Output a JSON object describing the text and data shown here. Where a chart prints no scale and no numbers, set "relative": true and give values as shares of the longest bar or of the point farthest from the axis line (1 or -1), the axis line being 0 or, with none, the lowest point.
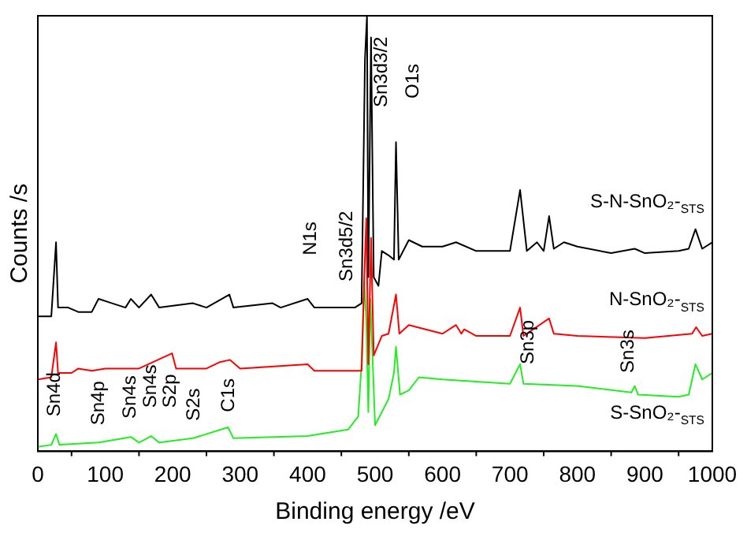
{
  "chart_data": {
    "type": "line",
    "relative": true,
    "xlabel": "Binding energy /eV",
    "ylabel": "Counts /s",
    "xlim": [
      0,
      1000
    ],
    "xticks": [
      0,
      100,
      200,
      300,
      400,
      500,
      600,
      700,
      800,
      900,
      1000
    ],
    "tick_labels": "x",
    "grid": false,
    "legend": false,
    "marker": "none",
    "series": [
      {
        "name": "S-N-SnO₂-$_{STS}$",
        "color": "#000000",
        "x": [
          0,
          10,
          20,
          27,
          30,
          45,
          60,
          80,
          90,
          110,
          130,
          138,
          150,
          168,
          180,
          230,
          250,
          284,
          290,
          348,
          360,
          400,
          410,
          470,
          480,
          485,
          488,
          490,
          494,
          498,
          505,
          510,
          520,
          528,
          531,
          535,
          550,
          570,
          600,
          620,
          650,
          700,
          715,
          725,
          740,
          750,
          758,
          765,
          780,
          800,
          850,
          885,
          900,
          950,
          965,
          975,
          985,
          1000
        ],
        "values": [
          0.31,
          0.31,
          0.31,
          0.48,
          0.33,
          0.33,
          0.32,
          0.32,
          0.35,
          0.34,
          0.33,
          0.35,
          0.33,
          0.36,
          0.33,
          0.34,
          0.33,
          0.36,
          0.33,
          0.34,
          0.33,
          0.35,
          0.33,
          0.33,
          0.34,
          0.9,
          1,
          0.4,
          0.95,
          0.4,
          0.38,
          0.46,
          0.45,
          0.44,
          0.71,
          0.44,
          0.485,
          0.47,
          0.47,
          0.48,
          0.46,
          0.46,
          0.6,
          0.46,
          0.48,
          0.46,
          0.54,
          0.465,
          0.48,
          0.47,
          0.455,
          0.465,
          0.455,
          0.46,
          0.465,
          0.51,
          0.465,
          0.48
        ]
      },
      {
        "name": "N-SnO₂-$_{STS}$",
        "color": "#ff0000",
        "x": [
          0,
          20,
          27,
          30,
          50,
          60,
          80,
          100,
          150,
          199,
          205,
          250,
          270,
          285,
          300,
          400,
          410,
          480,
          484,
          487,
          490,
          494,
          498,
          510,
          520,
          531,
          536,
          550,
          600,
          620,
          628,
          632,
          650,
          700,
          715,
          720,
          758,
          765,
          800,
          900,
          970,
          976,
          985,
          1000
        ],
        "values": [
          0.165,
          0.17,
          0.25,
          0.18,
          0.18,
          0.19,
          0.185,
          0.19,
          0.19,
          0.225,
          0.19,
          0.19,
          0.205,
          0.21,
          0.19,
          0.2,
          0.185,
          0.185,
          0.4,
          0.535,
          0.2,
          0.49,
          0.22,
          0.265,
          0.27,
          0.36,
          0.27,
          0.29,
          0.27,
          0.29,
          0.27,
          0.28,
          0.265,
          0.265,
          0.33,
          0.265,
          0.305,
          0.27,
          0.265,
          0.26,
          0.27,
          0.285,
          0.265,
          0.27
        ]
      },
      {
        "name": "S-SnO₂-$_{STS}$",
        "color": "#22ee22",
        "x": [
          0,
          20,
          27,
          32,
          90,
          138,
          150,
          168,
          180,
          230,
          282,
          290,
          400,
          460,
          475,
          480,
          484,
          487,
          490,
          493,
          500,
          520,
          528,
          531,
          537,
          550,
          565,
          600,
          650,
          700,
          715,
          720,
          800,
          880,
          885,
          890,
          950,
          965,
          975,
          985,
          1000
        ],
        "values": [
          0.01,
          0.015,
          0.04,
          0.015,
          0.02,
          0.033,
          0.02,
          0.035,
          0.02,
          0.03,
          0.055,
          0.03,
          0.035,
          0.05,
          0.08,
          0.2,
          0.39,
          0.3,
          0.09,
          0.35,
          0.06,
          0.12,
          0.18,
          0.24,
          0.13,
          0.14,
          0.17,
          0.165,
          0.16,
          0.155,
          0.2,
          0.155,
          0.15,
          0.135,
          0.15,
          0.13,
          0.125,
          0.13,
          0.2,
          0.165,
          0.18
        ]
      }
    ],
    "annotations": [
      "Sn4d",
      "Sn4p",
      "Sn4s",
      "Sn4s",
      "S2p",
      "S2s",
      "C1s",
      "N1s",
      "Sn3d5/2",
      "Sn3d3/2",
      "O1s",
      "Sn3p",
      "Sn3s"
    ]
  }
}
